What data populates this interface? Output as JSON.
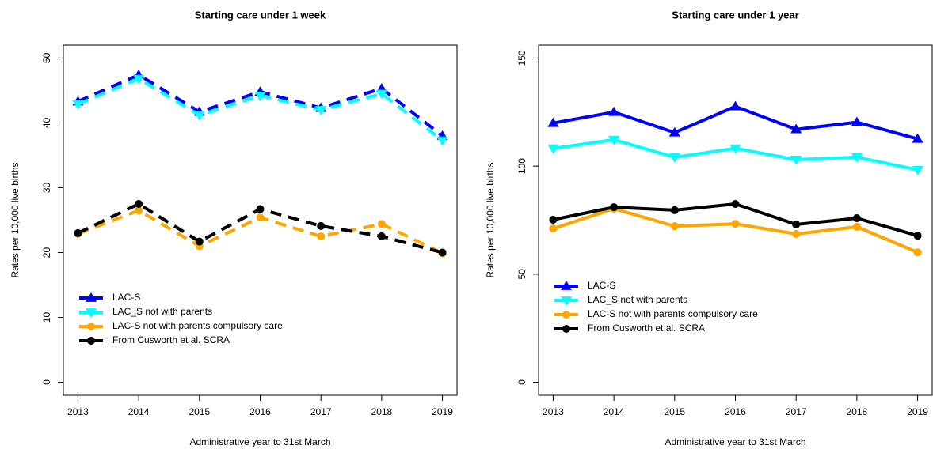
{
  "chart_data": [
    {
      "type": "line",
      "title": "Starting care under 1 week",
      "xlabel": "Administrative year to 31st March",
      "ylabel": "Rates per 10,000 live births",
      "x": [
        2013,
        2014,
        2015,
        2016,
        2017,
        2018,
        2019
      ],
      "xlim": [
        2012.76,
        2019.24
      ],
      "xticks": [
        2013,
        2014,
        2015,
        2016,
        2017,
        2018,
        2019
      ],
      "ylim": [
        -2,
        52
      ],
      "yticks": [
        0,
        10,
        20,
        30,
        40,
        50
      ],
      "line_style": "dashed",
      "legend": "bottomleft",
      "series": [
        {
          "name": "LAC-S",
          "color": "#0000ff",
          "marker": "triangle-up",
          "values": [
            43.3,
            47.4,
            41.7,
            44.8,
            42.3,
            45.3,
            38.0
          ]
        },
        {
          "name": "LAC_S not with parents",
          "color": "#00ffff",
          "marker": "triangle-down",
          "values": [
            42.9,
            46.8,
            41.2,
            44.2,
            42.0,
            44.5,
            37.3
          ]
        },
        {
          "name": "LAC-S not with parents compulsory care",
          "color": "#ffa500",
          "marker": "circle",
          "values": [
            22.9,
            26.5,
            21.0,
            25.4,
            22.5,
            24.4,
            19.9
          ]
        },
        {
          "name": "From Cusworth et al. SCRA",
          "color": "#000000",
          "marker": "circle",
          "values": [
            23.0,
            27.5,
            21.7,
            26.7,
            24.1,
            22.5,
            20.0
          ]
        }
      ]
    },
    {
      "type": "line",
      "title": "Starting care under 1 year",
      "xlabel": "Administrative year to 31st March",
      "ylabel": "Rates per 10,000 live births",
      "x": [
        2013,
        2014,
        2015,
        2016,
        2017,
        2018,
        2019
      ],
      "xlim": [
        2012.76,
        2019.24
      ],
      "xticks": [
        2013,
        2014,
        2015,
        2016,
        2017,
        2018,
        2019
      ],
      "ylim": [
        -6,
        156
      ],
      "yticks": [
        0,
        50,
        100,
        150
      ],
      "line_style": "solid",
      "legend": "left",
      "series": [
        {
          "name": "LAC-S",
          "color": "#0000ff",
          "marker": "triangle-up",
          "values": [
            119.9,
            125.0,
            115.5,
            127.6,
            117.0,
            120.3,
            112.6
          ]
        },
        {
          "name": "LAC_S not with parents",
          "color": "#00ffff",
          "marker": "triangle-down",
          "values": [
            108.2,
            112.2,
            104.1,
            108.2,
            103.0,
            104.1,
            98.3
          ]
        },
        {
          "name": "LAC-S not with parents compulsory care",
          "color": "#ffa500",
          "marker": "circle",
          "values": [
            71.1,
            80.3,
            72.2,
            73.3,
            68.6,
            71.9,
            60.1
          ]
        },
        {
          "name": "From Cusworth et al. SCRA",
          "color": "#000000",
          "marker": "circle",
          "values": [
            75.2,
            81.0,
            79.6,
            82.5,
            73.0,
            75.9,
            67.8
          ]
        }
      ]
    }
  ]
}
